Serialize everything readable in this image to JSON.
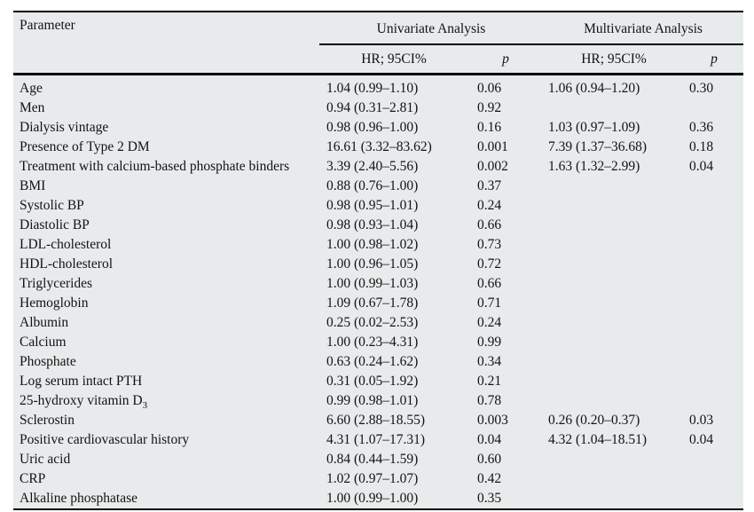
{
  "table": {
    "bg_color": "#e7ebeb",
    "rule_color": "#000000",
    "text_color": "#131313",
    "header": {
      "parameter_label": "Parameter",
      "group1_label": "Univariate Analysis",
      "group2_label": "Multivariate Analysis",
      "sub_hr_label": "HR; 95CI%",
      "sub_p_label": "p"
    },
    "rows": [
      {
        "parameter": "Age",
        "uni_hr": "1.04 (0.99–1.10)",
        "uni_p": "0.06",
        "multi_hr": "1.06 (0.94–1.20)",
        "multi_p": "0.30"
      },
      {
        "parameter": "Men",
        "uni_hr": "0.94 (0.31–2.81)",
        "uni_p": "0.92",
        "multi_hr": "",
        "multi_p": ""
      },
      {
        "parameter": "Dialysis vintage",
        "uni_hr": "0.98 (0.96–1.00)",
        "uni_p": "0.16",
        "multi_hr": "1.03 (0.97–1.09)",
        "multi_p": "0.36"
      },
      {
        "parameter": "Presence of Type 2 DM",
        "uni_hr": "16.61 (3.32–83.62)",
        "uni_p": "0.001",
        "multi_hr": "7.39 (1.37–36.68)",
        "multi_p": "0.18"
      },
      {
        "parameter": "Treatment with calcium-based phosphate binders",
        "uni_hr": "3.39 (2.40–5.56)",
        "uni_p": "0.002",
        "multi_hr": "1.63 (1.32–2.99)",
        "multi_p": "0.04"
      },
      {
        "parameter": "BMI",
        "uni_hr": "0.88 (0.76–1.00)",
        "uni_p": "0.37",
        "multi_hr": "",
        "multi_p": ""
      },
      {
        "parameter": "Systolic BP",
        "uni_hr": "0.98 (0.95–1.01)",
        "uni_p": "0.24",
        "multi_hr": "",
        "multi_p": ""
      },
      {
        "parameter": "Diastolic BP",
        "uni_hr": "0.98 (0.93–1.04)",
        "uni_p": "0.66",
        "multi_hr": "",
        "multi_p": ""
      },
      {
        "parameter": "LDL-cholesterol",
        "uni_hr": "1.00 (0.98–1.02)",
        "uni_p": "0.73",
        "multi_hr": "",
        "multi_p": ""
      },
      {
        "parameter": "HDL-cholesterol",
        "uni_hr": "1.00 (0.96–1.05)",
        "uni_p": "0.72",
        "multi_hr": "",
        "multi_p": ""
      },
      {
        "parameter": "Triglycerides",
        "uni_hr": "1.00 (0.99–1.03)",
        "uni_p": "0.66",
        "multi_hr": "",
        "multi_p": ""
      },
      {
        "parameter": "Hemoglobin",
        "uni_hr": "1.09 (0.67–1.78)",
        "uni_p": "0.71",
        "multi_hr": "",
        "multi_p": ""
      },
      {
        "parameter": "Albumin",
        "uni_hr": "0.25 (0.02–2.53)",
        "uni_p": "0.24",
        "multi_hr": "",
        "multi_p": ""
      },
      {
        "parameter": "Calcium",
        "uni_hr": "1.00 (0.23–4.31)",
        "uni_p": "0.99",
        "multi_hr": "",
        "multi_p": ""
      },
      {
        "parameter": "Phosphate",
        "uni_hr": "0.63 (0.24–1.62)",
        "uni_p": "0.34",
        "multi_hr": "",
        "multi_p": ""
      },
      {
        "parameter": "Log serum intact PTH",
        "uni_hr": "0.31 (0.05–1.92)",
        "uni_p": "0.21",
        "multi_hr": "",
        "multi_p": ""
      },
      {
        "parameter": "25-hydroxy vitamin D",
        "parameter_sub": "3",
        "uni_hr": "0.99 (0.98–1.01)",
        "uni_p": "0.78",
        "multi_hr": "",
        "multi_p": ""
      },
      {
        "parameter": "Sclerostin",
        "uni_hr": "6.60 (2.88–18.55)",
        "uni_p": "0.003",
        "multi_hr": "0.26 (0.20–0.37)",
        "multi_p": "0.03"
      },
      {
        "parameter": "Positive cardiovascular history",
        "uni_hr": "4.31 (1.07–17.31)",
        "uni_p": "0.04",
        "multi_hr": "4.32 (1.04–18.51)",
        "multi_p": "0.04"
      },
      {
        "parameter": "Uric acid",
        "uni_hr": "0.84 (0.44–1.59)",
        "uni_p": "0.60",
        "multi_hr": "",
        "multi_p": ""
      },
      {
        "parameter": "CRP",
        "uni_hr": "1.02 (0.97–1.07)",
        "uni_p": "0.42",
        "multi_hr": "",
        "multi_p": ""
      },
      {
        "parameter": "Alkaline phosphatase",
        "uni_hr": "1.00 (0.99–1.00)",
        "uni_p": "0.35",
        "multi_hr": "",
        "multi_p": ""
      }
    ]
  }
}
